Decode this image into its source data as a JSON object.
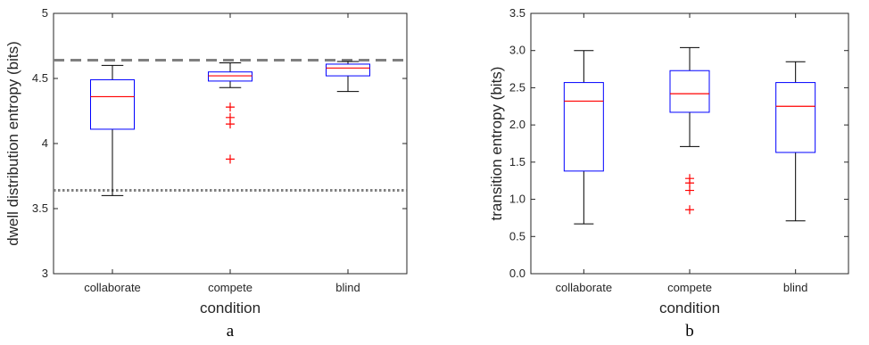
{
  "chart_data": [
    {
      "type": "box",
      "panel_label": "a",
      "xlabel": "condition",
      "ylabel": "dwell distribution entropy (bits)",
      "ylim": [
        3,
        5
      ],
      "yticks": [
        3,
        3.5,
        4,
        4.5,
        5
      ],
      "ytick_labels": [
        "3",
        "3.5",
        "4",
        "4.5",
        "5"
      ],
      "categories": [
        "collaborate",
        "compete",
        "blind"
      ],
      "boxes": [
        {
          "whisker_low": 3.6,
          "q1": 4.11,
          "median": 4.36,
          "q3": 4.49,
          "whisker_high": 4.6,
          "outliers": []
        },
        {
          "whisker_low": 4.43,
          "q1": 4.48,
          "median": 4.52,
          "q3": 4.55,
          "whisker_high": 4.62,
          "outliers": [
            4.28,
            4.2,
            4.15,
            3.88
          ]
        },
        {
          "whisker_low": 4.4,
          "q1": 4.52,
          "median": 4.58,
          "q3": 4.61,
          "whisker_high": 4.63,
          "outliers": []
        }
      ],
      "reference_lines": [
        {
          "y": 4.64,
          "style": "dashed"
        },
        {
          "y": 3.64,
          "style": "dotted"
        }
      ],
      "box_color": "#0000ff",
      "median_color": "#ff0000",
      "whisker_color": "#000000",
      "outlier_color": "#ff0000",
      "reference_line_color": "#808080",
      "grid": false
    },
    {
      "type": "box",
      "panel_label": "b",
      "xlabel": "condition",
      "ylabel": "transition entropy (bits)",
      "ylim": [
        0,
        3.5
      ],
      "yticks": [
        0,
        0.5,
        1,
        1.5,
        2,
        2.5,
        3,
        3.5
      ],
      "ytick_labels": [
        "0.0",
        "0.5",
        "1.0",
        "1.5",
        "2.0",
        "2.5",
        "3.0",
        "3.5"
      ],
      "categories": [
        "collaborate",
        "compete",
        "blind"
      ],
      "boxes": [
        {
          "whisker_low": 0.67,
          "q1": 1.38,
          "median": 2.32,
          "q3": 2.57,
          "whisker_high": 3.0,
          "outliers": []
        },
        {
          "whisker_low": 1.71,
          "q1": 2.17,
          "median": 2.42,
          "q3": 2.73,
          "whisker_high": 3.04,
          "outliers": [
            1.28,
            1.22,
            1.12,
            0.86
          ]
        },
        {
          "whisker_low": 0.71,
          "q1": 1.63,
          "median": 2.25,
          "q3": 2.57,
          "whisker_high": 2.85,
          "outliers": []
        }
      ],
      "reference_lines": [],
      "box_color": "#0000ff",
      "median_color": "#ff0000",
      "whisker_color": "#000000",
      "outlier_color": "#ff0000",
      "grid": false
    }
  ]
}
